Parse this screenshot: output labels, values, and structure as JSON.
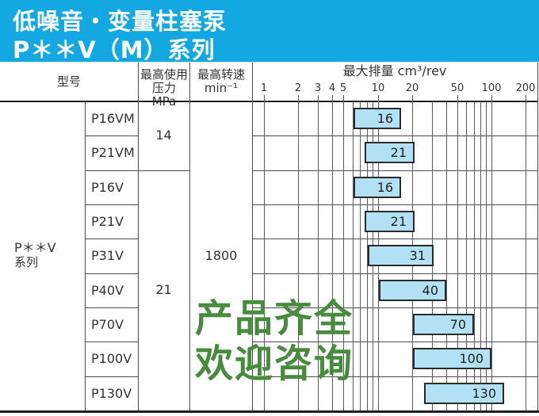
{
  "banner": {
    "line1": "低噪音・变量柱塞泵",
    "line2": "P＊＊V（M）系列",
    "bg_color": "#13a8e2",
    "text_color": "#ffffff"
  },
  "table_headers": {
    "model": "型号",
    "pressure_line1": "最高使用",
    "pressure_line2": "压力 MPa",
    "speed_line1": "最高转速",
    "speed_line2": "min⁻¹"
  },
  "series_label": {
    "line1": "P＊＊V",
    "line2": "系列"
  },
  "pressure": {
    "p14": "14",
    "p21": "21"
  },
  "speed_value": "1800",
  "chart_data": {
    "type": "bar",
    "title": "最大排量 cm³/rev",
    "x_scale": "log",
    "xlim": [
      1,
      200
    ],
    "ticks_labeled": [
      1,
      2,
      3,
      4,
      5,
      10,
      20,
      50,
      100,
      200
    ],
    "ticks_minor": [
      6,
      7,
      8,
      9,
      30,
      40,
      60,
      70,
      80,
      90
    ],
    "categories": [
      "P16VM",
      "P21VM",
      "P16V",
      "P21V",
      "P31V",
      "P40V",
      "P70V",
      "P100V",
      "P130V"
    ],
    "values": [
      16,
      21,
      16,
      21,
      31,
      40,
      70,
      100,
      130
    ],
    "bar_start_estimates": [
      6.1,
      7.7,
      6.1,
      7.7,
      8.2,
      10.2,
      20.4,
      20.4,
      25.6
    ],
    "bar_fill": "#b2e0f5",
    "bar_border": "#2b2b2b",
    "grid": true,
    "legend": "none"
  },
  "watermark": {
    "line1": "产品齐全",
    "line2": "欢迎咨询",
    "color": "#468c3c"
  }
}
